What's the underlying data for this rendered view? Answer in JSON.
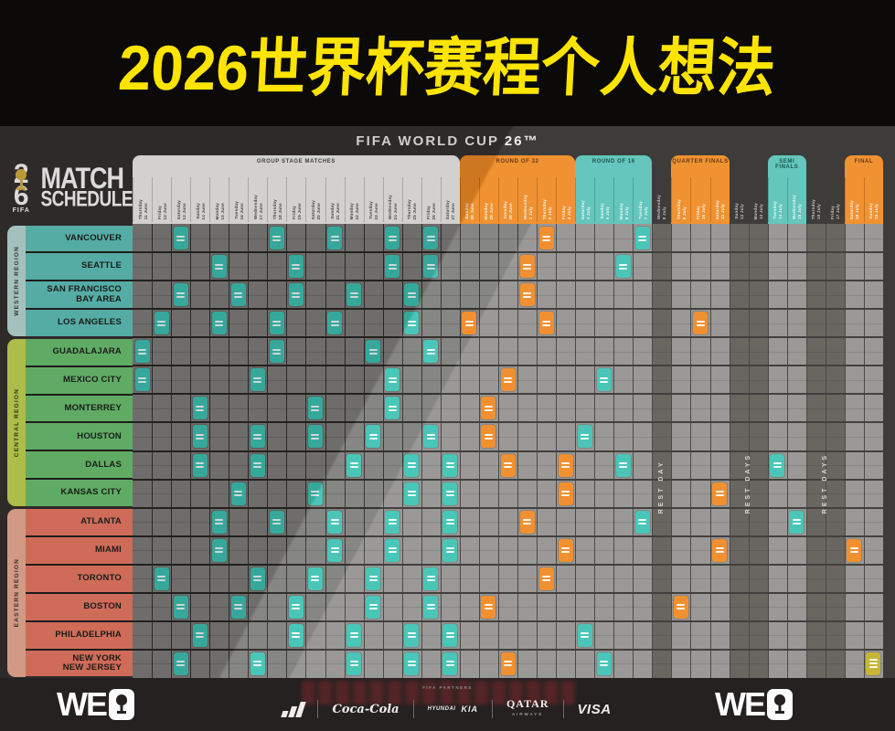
{
  "banner": {
    "title": "2026世界杯赛程个人想法",
    "bg_color": "#0b0a09",
    "text_color": "#ffe400"
  },
  "header": {
    "fifa_title": "FIFA WORLD CUP 26™",
    "logo": {
      "digit_top": "2",
      "digit_bottom": "6",
      "fifa_caption": "FIFA",
      "line1": "MATCH",
      "line2": "SCHEDULE",
      "trophy_icon": "world-cup-trophy",
      "trophy_color": "#d9b245"
    }
  },
  "chart_data": {
    "type": "table",
    "title": "FIFA World Cup 26 Match Schedule (host city × date matrix)",
    "stages": [
      {
        "label": "GROUP STAGE MATCHES",
        "style": "group",
        "col_start": 1,
        "col_end": 17
      },
      {
        "label": "ROUND OF 32",
        "style": "orange",
        "col_start": 18,
        "col_end": 23
      },
      {
        "label": "ROUND OF 16",
        "style": "teal",
        "col_start": 24,
        "col_end": 27
      },
      {
        "label": "REST DAY",
        "style": "rest",
        "col_start": 28,
        "col_end": 28
      },
      {
        "label": "QUARTER FINALS",
        "style": "orange",
        "col_start": 29,
        "col_end": 31
      },
      {
        "label": "REST DAYS",
        "style": "rest",
        "col_start": 32,
        "col_end": 33
      },
      {
        "label": "SEMI FINALS",
        "style": "teal",
        "col_start": 34,
        "col_end": 35
      },
      {
        "label": "REST DAYS",
        "style": "rest",
        "col_start": 36,
        "col_end": 37
      },
      {
        "label": "FINAL",
        "style": "orange",
        "col_start": 38,
        "col_end": 39
      }
    ],
    "columns": [
      "Thursday 11 June",
      "Friday 12 June",
      "Saturday 13 June",
      "Sunday 14 June",
      "Monday 15 June",
      "Tuesday 16 June",
      "Wednesday 17 June",
      "Thursday 18 June",
      "Friday 19 June",
      "Saturday 20 June",
      "Sunday 21 June",
      "Monday 22 June",
      "Tuesday 23 June",
      "Wednesday 24 June",
      "Thursday 25 June",
      "Friday 26 June",
      "Saturday 27 June",
      "Sunday 28 June",
      "Monday 29 June",
      "Tuesday 30 June",
      "Wednesday 1 July",
      "Thursday 2 July",
      "Friday 3 July",
      "Saturday 4 July",
      "Sunday 5 July",
      "Monday 6 July",
      "Tuesday 7 July",
      "Wednesday 8 July",
      "Thursday 9 July",
      "Friday 10 July",
      "Saturday 11 July",
      "Sunday 12 July",
      "Monday 13 July",
      "Tuesday 14 July",
      "Wednesday 15 July",
      "Thursday 16 July",
      "Friday 17 July",
      "Saturday 18 July",
      "Sunday 19 July"
    ],
    "regions": [
      {
        "name": "WESTERN REGION",
        "sidebar_color": "#bfe0dc",
        "cell_color": "#63c8c0",
        "cities": [
          {
            "lines": [
              "VANCOUVER"
            ],
            "match_days": [
              3,
              8,
              11,
              14,
              16,
              22,
              27
            ]
          },
          {
            "lines": [
              "SEATTLE"
            ],
            "match_days": [
              5,
              9,
              14,
              16,
              21,
              26
            ]
          },
          {
            "lines": [
              "SAN FRANCISCO",
              "BAY AREA"
            ],
            "match_days": [
              3,
              6,
              9,
              12,
              15,
              21
            ]
          },
          {
            "lines": [
              "LOS ANGELES"
            ],
            "match_days": [
              2,
              5,
              8,
              11,
              15,
              18,
              22,
              30
            ]
          }
        ]
      },
      {
        "name": "CENTRAL REGION",
        "sidebar_color": "#c8dc55",
        "cell_color": "#6fc774",
        "cities": [
          {
            "lines": [
              "GUADALAJARA"
            ],
            "match_days": [
              1,
              8,
              13,
              16
            ]
          },
          {
            "lines": [
              "MEXICO CITY"
            ],
            "match_days": [
              1,
              7,
              14,
              20,
              25
            ]
          },
          {
            "lines": [
              "MONTERREY"
            ],
            "match_days": [
              4,
              10,
              14,
              19
            ]
          },
          {
            "lines": [
              "HOUSTON"
            ],
            "match_days": [
              4,
              7,
              10,
              13,
              16,
              19,
              24
            ]
          },
          {
            "lines": [
              "DALLAS"
            ],
            "match_days": [
              4,
              7,
              12,
              15,
              17,
              20,
              23,
              26,
              34
            ]
          },
          {
            "lines": [
              "KANSAS CITY"
            ],
            "match_days": [
              6,
              10,
              15,
              17,
              23,
              31
            ]
          }
        ]
      },
      {
        "name": "EASTERN REGION",
        "sidebar_color": "#f4b29a",
        "cell_color": "#f17d67",
        "cities": [
          {
            "lines": [
              "ATLANTA"
            ],
            "match_days": [
              5,
              8,
              11,
              14,
              17,
              21,
              27,
              35
            ]
          },
          {
            "lines": [
              "MIAMI"
            ],
            "match_days": [
              5,
              11,
              14,
              17,
              23,
              31,
              38
            ]
          },
          {
            "lines": [
              "TORONTO"
            ],
            "match_days": [
              2,
              7,
              10,
              13,
              16,
              22
            ]
          },
          {
            "lines": [
              "BOSTON"
            ],
            "match_days": [
              3,
              6,
              9,
              13,
              16,
              19,
              29
            ]
          },
          {
            "lines": [
              "PHILADELPHIA"
            ],
            "match_days": [
              4,
              9,
              12,
              15,
              17,
              24
            ]
          },
          {
            "lines": [
              "NEW YORK",
              "NEW JERSEY"
            ],
            "match_days": [
              3,
              7,
              12,
              15,
              17,
              20,
              25,
              39
            ]
          }
        ]
      }
    ],
    "marker_colors": {
      "group_and_r16_and_sf": "#3fc3b4",
      "r32_and_qf_and_bronze": "#f08a26",
      "final": "#c4b12b"
    },
    "legend_note": "teal = group stage / round of 16 / semi finals, orange = round of 32 / quarter finals / bronze, gold = final"
  },
  "footer": {
    "partners_label": "FIFA PARTNERS",
    "sponsors": {
      "s1": "adidas",
      "s2": "Coca-Cola",
      "s3a": "HYUNDAI",
      "s3b": "KIA",
      "s4a": "QATAR",
      "s4b": "AIRWAYS",
      "s5": "VISA"
    },
    "we_logo_text": "WE"
  }
}
